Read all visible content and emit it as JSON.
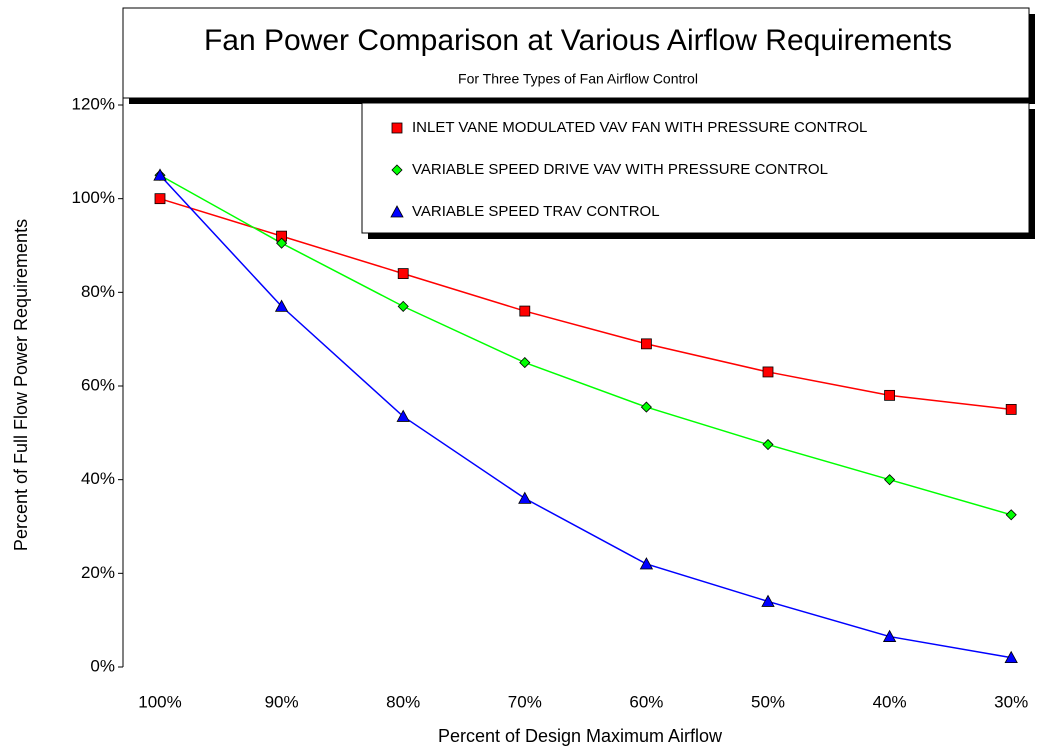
{
  "chart_data": {
    "type": "line",
    "title": "Fan Power Comparison at Various Airflow Requirements",
    "subtitle": "For Three Types of Fan Airflow Control",
    "x_label": "Percent of Design Maximum Airflow",
    "y_label": "Percent of Full Flow Power Requirements",
    "categories": [
      "100%",
      "90%",
      "80%",
      "70%",
      "60%",
      "50%",
      "40%",
      "30%"
    ],
    "series": [
      {
        "name": "INLET VANE MODULATED VAV FAN WITH PRESSURE CONTROL",
        "color": "#ff0000",
        "marker": "square",
        "values": [
          100,
          92,
          84,
          76,
          69,
          63,
          58,
          55
        ]
      },
      {
        "name": "VARIABLE SPEED DRIVE VAV WITH PRESSURE CONTROL",
        "color": "#00ff00",
        "marker": "diamond",
        "values": [
          105,
          90.5,
          77,
          65,
          55.5,
          47.5,
          40,
          32.5
        ]
      },
      {
        "name": "VARIABLE SPEED TRAV CONTROL",
        "color": "#0000ff",
        "marker": "triangle",
        "values": [
          105,
          77,
          53.5,
          36,
          22,
          14,
          6.5,
          2
        ]
      }
    ],
    "ylim": [
      0,
      120
    ],
    "yticks": [
      {
        "value": 0,
        "label": "0%"
      },
      {
        "value": 20,
        "label": "20%"
      },
      {
        "value": 40,
        "label": "40%"
      },
      {
        "value": 60,
        "label": "60%"
      },
      {
        "value": 80,
        "label": "80%"
      },
      {
        "value": 100,
        "label": "100%"
      },
      {
        "value": 120,
        "label": "120%"
      }
    ]
  }
}
